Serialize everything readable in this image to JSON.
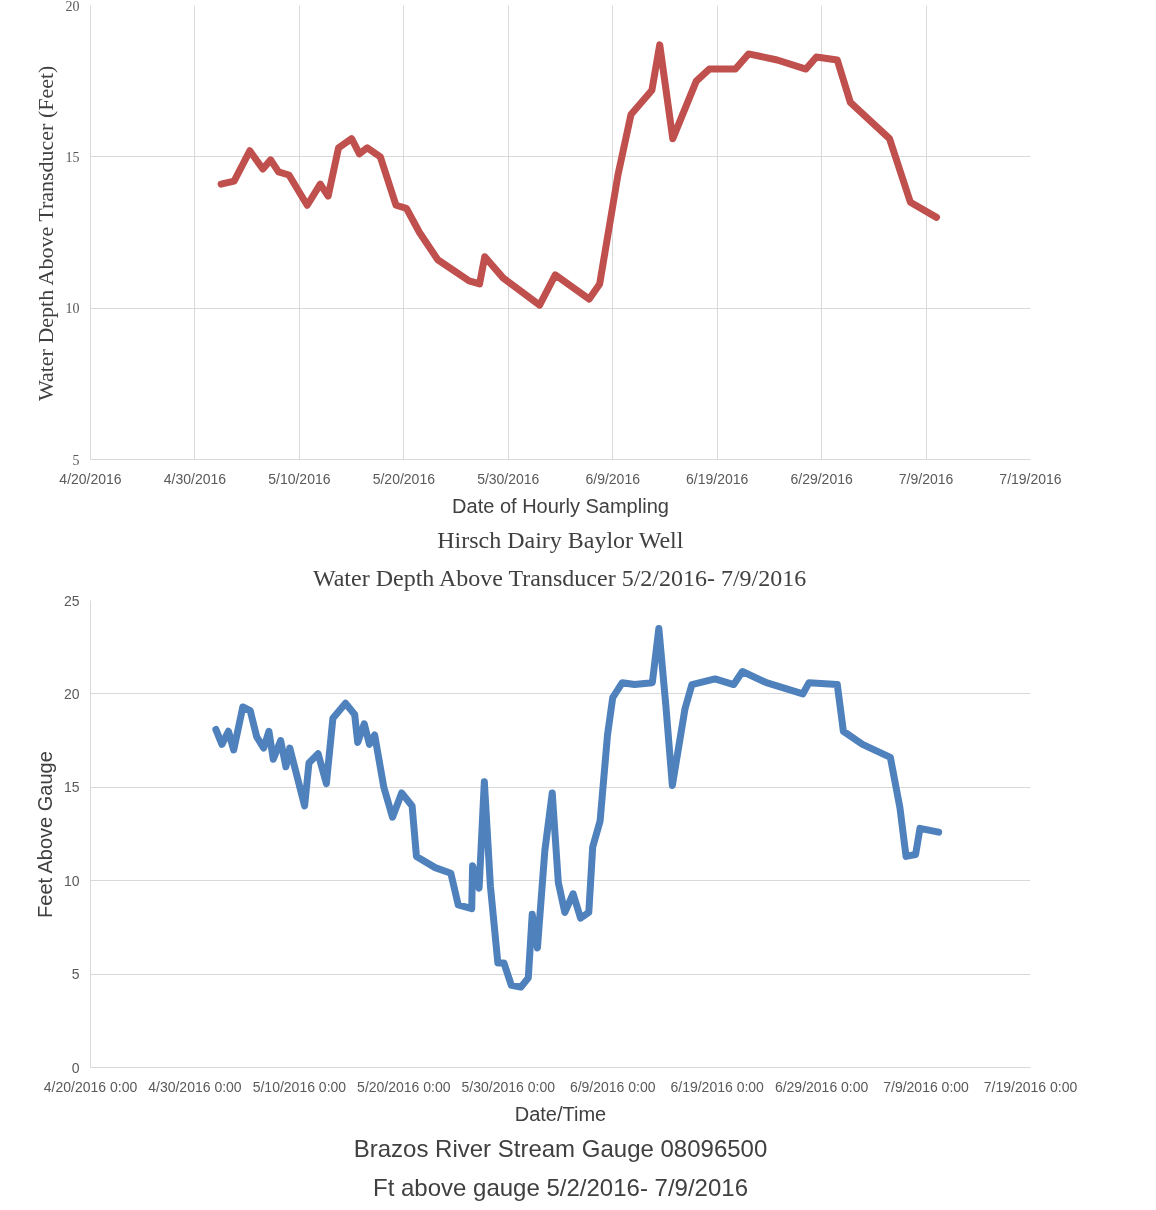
{
  "chart_data": [
    {
      "type": "line",
      "title": "Hirsch Dairy Baylor Well",
      "subtitle": "Water Depth Above Transducer 5/2/2016- 7/9/2016",
      "xlabel": "Date of Hourly Sampling",
      "ylabel": "Water Depth Above Transducer (Feet)",
      "x": [
        "2016-05-02T12:00",
        "2016-05-03T18:00",
        "2016-05-05T06:00",
        "2016-05-06T12:00",
        "2016-05-07T06:00",
        "2016-05-08T00:00",
        "2016-05-09T00:00",
        "2016-05-10T18:00",
        "2016-05-12T00:00",
        "2016-05-12T18:00",
        "2016-05-13T18:00",
        "2016-05-15T00:00",
        "2016-05-15T18:00",
        "2016-05-16T12:00",
        "2016-05-17T18:00",
        "2016-05-19T06:00",
        "2016-05-20T06:00",
        "2016-05-21T12:00",
        "2016-05-23T06:00",
        "2016-05-26T06:00",
        "2016-05-27T06:00",
        "2016-05-27T18:00",
        "2016-05-29T12:00",
        "2016-06-02T00:00",
        "2016-06-03T12:00",
        "2016-06-06T18:00",
        "2016-06-07T18:00",
        "2016-06-09T12:00",
        "2016-06-10T18:00",
        "2016-06-12T18:00",
        "2016-06-13T12:00",
        "2016-06-14T18:00",
        "2016-06-17T00:00",
        "2016-06-18T06:00",
        "2016-06-20T18:00",
        "2016-06-22T00:00",
        "2016-06-24T18:00",
        "2016-06-27T12:00",
        "2016-06-28T12:00",
        "2016-06-30T12:00",
        "2016-07-01T18:00",
        "2016-07-05T12:00",
        "2016-07-07T12:00",
        "2016-07-10T00:00"
      ],
      "series": [
        {
          "color": "#c0504d",
          "values": [
            14.1,
            14.2,
            15.2,
            14.6,
            14.9,
            14.5,
            14.4,
            13.4,
            14.1,
            13.7,
            15.3,
            15.6,
            15.1,
            15.3,
            15.0,
            13.4,
            13.3,
            12.5,
            11.6,
            10.9,
            10.8,
            11.7,
            11.0,
            10.1,
            11.1,
            10.3,
            10.8,
            14.4,
            16.4,
            17.2,
            18.7,
            15.6,
            17.5,
            17.9,
            17.9,
            18.4,
            18.2,
            17.9,
            18.3,
            18.2,
            16.8,
            15.6,
            13.5,
            13.0
          ]
        }
      ],
      "xlim": [
        "2016-04-20",
        "2016-07-19"
      ],
      "xticks": [
        {
          "value": "2016-04-20",
          "label": "4/20/2016"
        },
        {
          "value": "2016-04-30",
          "label": "4/30/2016"
        },
        {
          "value": "2016-05-10",
          "label": "5/10/2016"
        },
        {
          "value": "2016-05-20",
          "label": "5/20/2016"
        },
        {
          "value": "2016-05-30",
          "label": "5/30/2016"
        },
        {
          "value": "2016-06-09",
          "label": "6/9/2016"
        },
        {
          "value": "2016-06-19",
          "label": "6/19/2016"
        },
        {
          "value": "2016-06-29",
          "label": "6/29/2016"
        },
        {
          "value": "2016-07-09",
          "label": "7/9/2016"
        },
        {
          "value": "2016-07-19",
          "label": "7/19/2016"
        }
      ],
      "ylim": [
        5,
        20
      ],
      "yticks": [
        5,
        10,
        15,
        20
      ],
      "grid": true,
      "marker": "none",
      "line_style": "solid"
    },
    {
      "type": "line",
      "title": "Brazos River Stream Gauge 08096500",
      "subtitle": "Ft above gauge 5/2/2016- 7/9/2016",
      "xlabel": "Date/Time",
      "ylabel": "Feet Above Gauge",
      "x": [
        "2016-05-02T00:00",
        "2016-05-02T14:00",
        "2016-05-03T05:00",
        "2016-05-03T17:00",
        "2016-05-04T14:00",
        "2016-05-05T07:00",
        "2016-05-05T22:00",
        "2016-05-06T14:00",
        "2016-05-07T02:00",
        "2016-05-07T12:00",
        "2016-05-08T05:00",
        "2016-05-08T17:00",
        "2016-05-09T02:00",
        "2016-05-10T12:00",
        "2016-05-10T22:00",
        "2016-05-11T19:00",
        "2016-05-12T14:00",
        "2016-05-13T05:00",
        "2016-05-14T10:00",
        "2016-05-15T07:00",
        "2016-05-15T14:00",
        "2016-05-16T05:00",
        "2016-05-16T17:00",
        "2016-05-17T05:00",
        "2016-05-18T02:00",
        "2016-05-18T22:00",
        "2016-05-19T19:00",
        "2016-05-20T19:00",
        "2016-05-21T05:00",
        "2016-05-23T00:00",
        "2016-05-24T12:00",
        "2016-05-25T05:00",
        "2016-05-26T12:00",
        "2016-05-26T14:00",
        "2016-05-27T05:00",
        "2016-05-27T17:00",
        "2016-05-28T07:00",
        "2016-05-29T00:00",
        "2016-05-29T14:00",
        "2016-05-30T07:00",
        "2016-05-31T05:00",
        "2016-05-31T22:00",
        "2016-06-01T07:00",
        "2016-06-01T19:00",
        "2016-06-02T12:00",
        "2016-06-03T05:00",
        "2016-06-03T19:00",
        "2016-06-04T10:00",
        "2016-06-05T05:00",
        "2016-06-05T22:00",
        "2016-06-06T17:00",
        "2016-06-07T02:00",
        "2016-06-07T19:00",
        "2016-06-08T12:00",
        "2016-06-09T00:00",
        "2016-06-09T22:00",
        "2016-06-11T02:00",
        "2016-06-12T19:00",
        "2016-06-13T10:00",
        "2016-06-14T02:00",
        "2016-06-14T17:00",
        "2016-06-15T22:00",
        "2016-06-16T14:00",
        "2016-06-18T19:00",
        "2016-06-20T14:00",
        "2016-06-21T10:00",
        "2016-06-23T17:00",
        "2016-06-27T05:00",
        "2016-06-27T19:00",
        "2016-06-30T12:00",
        "2016-07-01T02:00",
        "2016-07-02T22:00",
        "2016-07-05T14:00",
        "2016-07-06T12:00",
        "2016-07-07T02:00",
        "2016-07-08T00:00",
        "2016-07-08T10:00",
        "2016-07-10T05:00"
      ],
      "series": [
        {
          "color": "#4f81bd",
          "values": [
            18.1,
            17.3,
            18.0,
            17.0,
            19.3,
            19.1,
            17.7,
            17.1,
            18.0,
            16.5,
            17.5,
            16.1,
            17.1,
            14.0,
            16.3,
            16.8,
            15.2,
            18.7,
            19.5,
            18.9,
            17.4,
            18.4,
            17.3,
            17.8,
            15.0,
            13.4,
            14.7,
            14.0,
            11.3,
            10.7,
            10.4,
            8.7,
            8.5,
            10.8,
            9.6,
            15.3,
            9.7,
            5.6,
            5.6,
            4.4,
            4.3,
            4.8,
            8.2,
            6.4,
            11.6,
            14.7,
            9.9,
            8.3,
            9.3,
            8.0,
            8.3,
            11.8,
            13.2,
            17.8,
            19.8,
            20.6,
            20.5,
            20.6,
            23.5,
            19.4,
            15.1,
            19.2,
            20.5,
            20.8,
            20.5,
            21.2,
            20.6,
            20.0,
            20.6,
            20.5,
            18.0,
            17.3,
            16.6,
            13.9,
            11.3,
            11.4,
            12.8,
            12.6
          ]
        }
      ],
      "xlim": [
        "2016-04-20",
        "2016-07-19"
      ],
      "xticks": [
        {
          "value": "2016-04-20",
          "label": "4/20/2016 0:00"
        },
        {
          "value": "2016-04-30",
          "label": "4/30/2016 0:00"
        },
        {
          "value": "2016-05-10",
          "label": "5/10/2016 0:00"
        },
        {
          "value": "2016-05-20",
          "label": "5/20/2016 0:00"
        },
        {
          "value": "2016-05-30",
          "label": "5/30/2016 0:00"
        },
        {
          "value": "2016-06-09",
          "label": "6/9/2016 0:00"
        },
        {
          "value": "2016-06-19",
          "label": "6/19/2016 0:00"
        },
        {
          "value": "2016-06-29",
          "label": "6/29/2016 0:00"
        },
        {
          "value": "2016-07-09",
          "label": "7/9/2016 0:00"
        },
        {
          "value": "2016-07-19",
          "label": "7/19/2016 0:00"
        }
      ],
      "ylim": [
        0,
        25
      ],
      "yticks": [
        0,
        5,
        10,
        15,
        20,
        25
      ],
      "grid": "y",
      "marker": "none",
      "line_style": "solid"
    }
  ]
}
